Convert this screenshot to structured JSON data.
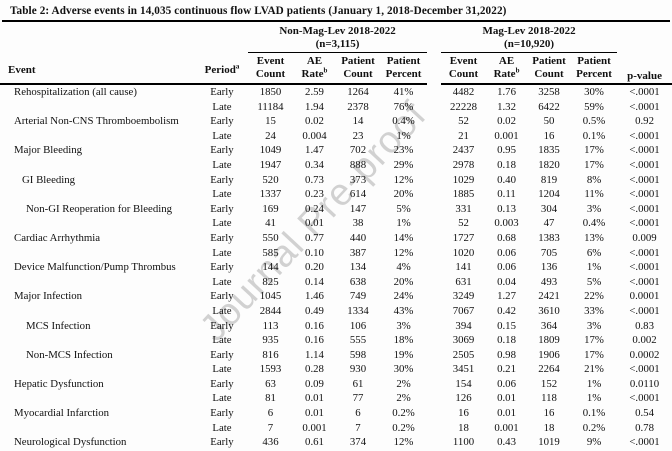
{
  "title": "Table 2: Adverse events in 14,035 continuous flow LVAD patients (January 1, 2018-December 31,2022)",
  "watermark": "Journal Pre-proof",
  "table": {
    "col_headers": {
      "event": "Event",
      "period": "Period",
      "period_sup": "a",
      "group1": {
        "line1": "Non-Mag-Lev 2018-2022",
        "line2": "(n=3,115)"
      },
      "group2": {
        "line1": "Mag-Lev 2018-2022",
        "line2": "(n=10,920)"
      },
      "sub": [
        {
          "l1": "Event",
          "l2": "Count"
        },
        {
          "l1": "AE",
          "l2": "Rate",
          "sup": "b"
        },
        {
          "l1": "Patient",
          "l2": "Count"
        },
        {
          "l1": "Patient",
          "l2": "Percent"
        }
      ],
      "pvalue": "p-value"
    },
    "rows": [
      {
        "event": "Rehospitalization (all cause)",
        "indent": 0,
        "period": "Early",
        "g1": [
          "1850",
          "2.59",
          "1264",
          "41%"
        ],
        "g2": [
          "4482",
          "1.76",
          "3258",
          "30%"
        ],
        "p": "<.0001"
      },
      {
        "event": "",
        "indent": 0,
        "period": "Late",
        "g1": [
          "11184",
          "1.94",
          "2378",
          "76%"
        ],
        "g2": [
          "22228",
          "1.32",
          "6422",
          "59%"
        ],
        "p": "<.0001"
      },
      {
        "event": "Arterial Non-CNS Thromboembolism",
        "indent": 0,
        "period": "Early",
        "g1": [
          "15",
          "0.02",
          "14",
          "0.4%"
        ],
        "g2": [
          "52",
          "0.02",
          "50",
          "0.5%"
        ],
        "p": "0.92"
      },
      {
        "event": "",
        "indent": 0,
        "period": "Late",
        "g1": [
          "24",
          "0.004",
          "23",
          "1%"
        ],
        "g2": [
          "21",
          "0.001",
          "16",
          "0.1%"
        ],
        "p": "<.0001"
      },
      {
        "event": "Major Bleeding",
        "indent": 0,
        "period": "Early",
        "g1": [
          "1049",
          "1.47",
          "702",
          "23%"
        ],
        "g2": [
          "2437",
          "0.95",
          "1835",
          "17%"
        ],
        "p": "<.0001"
      },
      {
        "event": "",
        "indent": 0,
        "period": "Late",
        "g1": [
          "1947",
          "0.34",
          "888",
          "29%"
        ],
        "g2": [
          "2978",
          "0.18",
          "1820",
          "17%"
        ],
        "p": "<.0001"
      },
      {
        "event": "GI Bleeding",
        "indent": 1,
        "period": "Early",
        "g1": [
          "520",
          "0.73",
          "373",
          "12%"
        ],
        "g2": [
          "1029",
          "0.40",
          "819",
          "8%"
        ],
        "p": "<.0001"
      },
      {
        "event": "",
        "indent": 0,
        "period": "Late",
        "g1": [
          "1337",
          "0.23",
          "614",
          "20%"
        ],
        "g2": [
          "1885",
          "0.11",
          "1204",
          "11%"
        ],
        "p": "<.0001"
      },
      {
        "event": "Non-GI Reoperation for Bleeding",
        "indent": 2,
        "period": "Early",
        "g1": [
          "169",
          "0.24",
          "147",
          "5%"
        ],
        "g2": [
          "331",
          "0.13",
          "304",
          "3%"
        ],
        "p": "<.0001"
      },
      {
        "event": "",
        "indent": 0,
        "period": "Late",
        "g1": [
          "41",
          "0.01",
          "38",
          "1%"
        ],
        "g2": [
          "52",
          "0.003",
          "47",
          "0.4%"
        ],
        "p": "<.0001"
      },
      {
        "event": "Cardiac Arrhythmia",
        "indent": 0,
        "period": "Early",
        "g1": [
          "550",
          "0.77",
          "440",
          "14%"
        ],
        "g2": [
          "1727",
          "0.68",
          "1383",
          "13%"
        ],
        "p": "0.009"
      },
      {
        "event": "",
        "indent": 0,
        "period": "Late",
        "g1": [
          "585",
          "0.10",
          "387",
          "12%"
        ],
        "g2": [
          "1020",
          "0.06",
          "705",
          "6%"
        ],
        "p": "<.0001"
      },
      {
        "event": "Device Malfunction/Pump Thrombus",
        "indent": 0,
        "period": "Early",
        "g1": [
          "144",
          "0.20",
          "134",
          "4%"
        ],
        "g2": [
          "141",
          "0.06",
          "136",
          "1%"
        ],
        "p": "<.0001"
      },
      {
        "event": "",
        "indent": 0,
        "period": "Late",
        "g1": [
          "825",
          "0.14",
          "638",
          "20%"
        ],
        "g2": [
          "631",
          "0.04",
          "493",
          "5%"
        ],
        "p": "<.0001"
      },
      {
        "event": "Major Infection",
        "indent": 0,
        "period": "Early",
        "g1": [
          "1045",
          "1.46",
          "749",
          "24%"
        ],
        "g2": [
          "3249",
          "1.27",
          "2421",
          "22%"
        ],
        "p": "0.0001"
      },
      {
        "event": "",
        "indent": 0,
        "period": "Late",
        "g1": [
          "2844",
          "0.49",
          "1334",
          "43%"
        ],
        "g2": [
          "7067",
          "0.42",
          "3610",
          "33%"
        ],
        "p": "<.0001"
      },
      {
        "event": "MCS Infection",
        "indent": 2,
        "period": "Early",
        "g1": [
          "113",
          "0.16",
          "106",
          "3%"
        ],
        "g2": [
          "394",
          "0.15",
          "364",
          "3%"
        ],
        "p": "0.83"
      },
      {
        "event": "",
        "indent": 0,
        "period": "Late",
        "g1": [
          "935",
          "0.16",
          "555",
          "18%"
        ],
        "g2": [
          "3069",
          "0.18",
          "1809",
          "17%"
        ],
        "p": "0.002"
      },
      {
        "event": "Non-MCS Infection",
        "indent": 2,
        "period": "Early",
        "g1": [
          "816",
          "1.14",
          "598",
          "19%"
        ],
        "g2": [
          "2505",
          "0.98",
          "1906",
          "17%"
        ],
        "p": "0.0002"
      },
      {
        "event": "",
        "indent": 0,
        "period": "Late",
        "g1": [
          "1593",
          "0.28",
          "930",
          "30%"
        ],
        "g2": [
          "3451",
          "0.21",
          "2264",
          "21%"
        ],
        "p": "<.0001"
      },
      {
        "event": "Hepatic Dysfunction",
        "indent": 0,
        "period": "Early",
        "g1": [
          "63",
          "0.09",
          "61",
          "2%"
        ],
        "g2": [
          "154",
          "0.06",
          "152",
          "1%"
        ],
        "p": "0.0110"
      },
      {
        "event": "",
        "indent": 0,
        "period": "Late",
        "g1": [
          "81",
          "0.01",
          "77",
          "2%"
        ],
        "g2": [
          "126",
          "0.01",
          "118",
          "1%"
        ],
        "p": "<.0001"
      },
      {
        "event": "Myocardial Infarction",
        "indent": 0,
        "period": "Early",
        "g1": [
          "6",
          "0.01",
          "6",
          "0.2%"
        ],
        "g2": [
          "16",
          "0.01",
          "16",
          "0.1%"
        ],
        "p": "0.54"
      },
      {
        "event": "",
        "indent": 0,
        "period": "Late",
        "g1": [
          "7",
          "0.001",
          "7",
          "0.2%"
        ],
        "g2": [
          "18",
          "0.001",
          "18",
          "0.2%"
        ],
        "p": "0.78"
      },
      {
        "event": "Neurological Dysfunction",
        "indent": 0,
        "period": "Early",
        "g1": [
          "436",
          "0.61",
          "374",
          "12%"
        ],
        "g2": [
          "1100",
          "0.43",
          "1019",
          "9%"
        ],
        "p": "<.0001"
      }
    ]
  }
}
